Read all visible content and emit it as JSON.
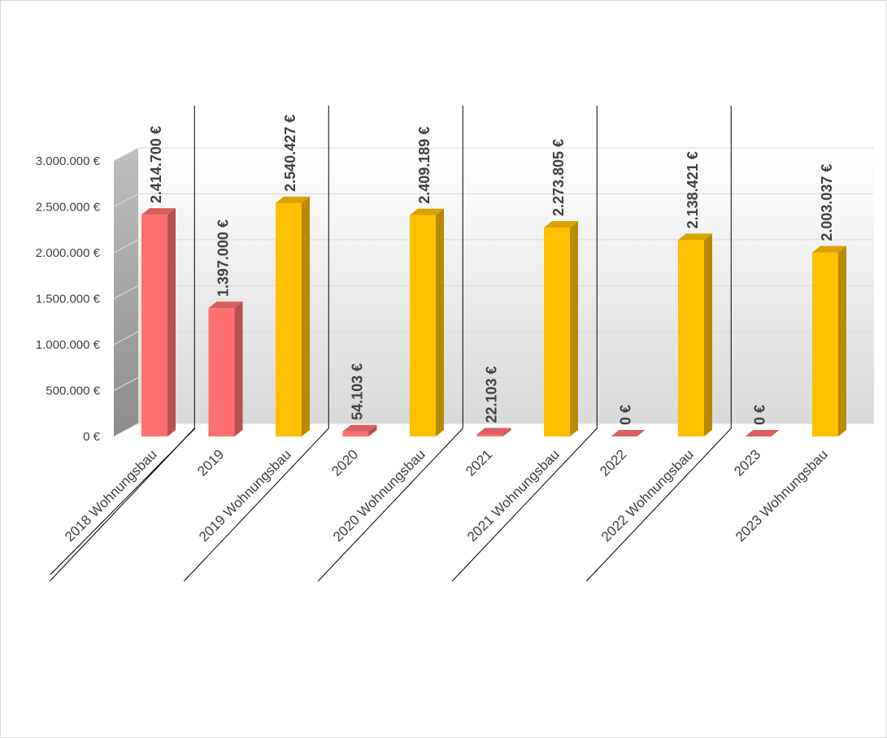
{
  "chart_data": {
    "type": "bar",
    "title": "",
    "xlabel": "",
    "ylabel": "",
    "ylim": [
      0,
      3000000
    ],
    "y_ticks": [
      {
        "value": 0,
        "label": "0 €"
      },
      {
        "value": 500000,
        "label": "500.000 €"
      },
      {
        "value": 1000000,
        "label": "1.000.000 €"
      },
      {
        "value": 1500000,
        "label": "1.500.000 €"
      },
      {
        "value": 2000000,
        "label": "2.000.000 €"
      },
      {
        "value": 2500000,
        "label": "2.500.000 €"
      },
      {
        "value": 3000000,
        "label": "3.000.000 €"
      }
    ],
    "grid": true,
    "style": "3d-clustered-column",
    "categories": [
      "2018 Wohnungsbau",
      "2019",
      "2019 Wohnungsbau",
      "2020",
      "2020 Wohnungsbau",
      "2021",
      "2021 Wohnungsbau",
      "2022",
      "2022 Wohnungsbau",
      "2023",
      "2023 Wohnungsbau"
    ],
    "values": [
      2414700,
      1397000,
      2540427,
      54103,
      2409189,
      22103,
      2273805,
      0,
      2138421,
      0,
      2003037
    ],
    "value_labels": [
      "2.414.700 €",
      "1.397.000 €",
      "2.540.427 €",
      "54.103 €",
      "2.409.189 €",
      "22.103 €",
      "2.273.805 €",
      "0 €",
      "2.138.421 €",
      "0 €",
      "2.003.037 €"
    ],
    "bar_colors": [
      "#ff7070",
      "#ff7070",
      "#ffc000",
      "#ff7070",
      "#ffc000",
      "#ff7070",
      "#ffc000",
      "#ff7070",
      "#ffc000",
      "#ff7070",
      "#ffc000"
    ],
    "group_separators_after": [
      0,
      2,
      4,
      6,
      8
    ]
  }
}
